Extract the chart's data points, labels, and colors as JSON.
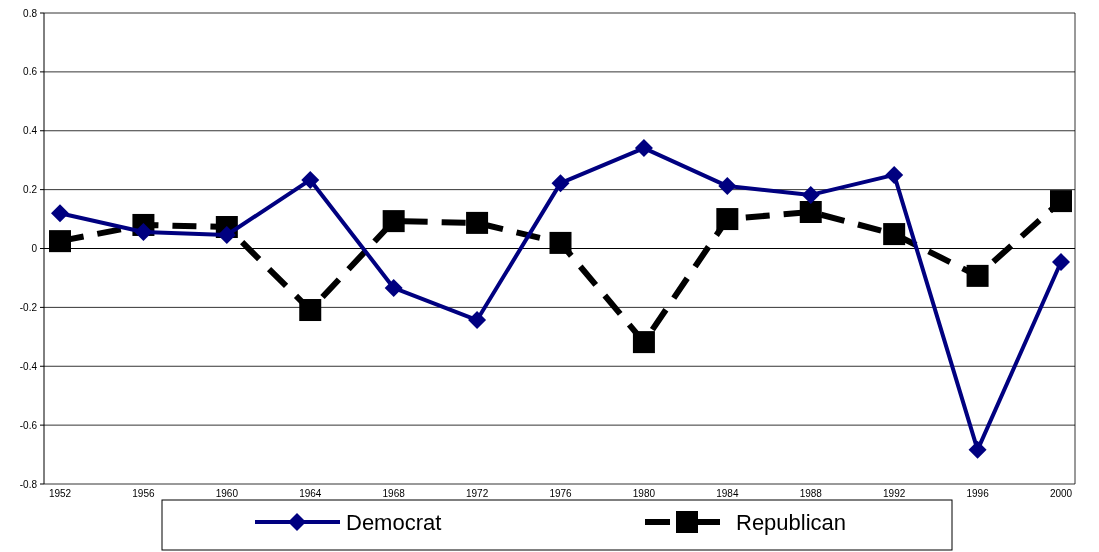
{
  "chart_data": {
    "type": "line",
    "categories": [
      "1952",
      "1956",
      "1960",
      "1964",
      "1968",
      "1972",
      "1976",
      "1980",
      "1984",
      "1988",
      "1992",
      "1996",
      "2000"
    ],
    "series": [
      {
        "name": "Democrat",
        "color": "#000080",
        "marker": "diamond",
        "line_style": "solid",
        "values": [
          0.12,
          0.056,
          0.046,
          0.233,
          -0.134,
          -0.243,
          0.222,
          0.341,
          0.212,
          0.182,
          0.25,
          -0.684,
          -0.046
        ]
      },
      {
        "name": "Republican",
        "color": "#000000",
        "marker": "square",
        "line_style": "dashed",
        "values": [
          0.025,
          0.08,
          0.073,
          -0.209,
          0.093,
          0.087,
          0.019,
          -0.318,
          0.1,
          0.124,
          0.049,
          -0.093,
          0.161
        ]
      }
    ],
    "ylim": [
      -0.8,
      0.8
    ],
    "yticks": [
      -0.8,
      -0.6,
      -0.4,
      -0.2,
      0,
      0.2,
      0.4,
      0.6,
      0.8
    ],
    "grid": "y",
    "legend": "bottom"
  }
}
